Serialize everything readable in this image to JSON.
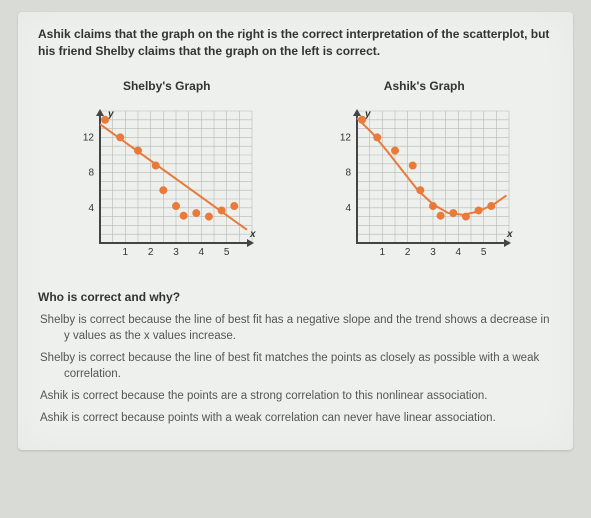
{
  "stem": "Ashik claims that the graph on the right is the correct interpretation of the scatterplot, but his friend Shelby claims that the graph on the left is correct.",
  "graph_left": {
    "title": "Shelby's Graph",
    "type": "scatter-with-line",
    "background_color": "#eef0ed",
    "grid_color": "#b9b9b0",
    "axis_color": "#444444",
    "axis_width": 2,
    "xlim": [
      0,
      6
    ],
    "ylim": [
      0,
      15
    ],
    "xticks": [
      1,
      2,
      3,
      4,
      5
    ],
    "xtick_labels": [
      "1",
      "2",
      "3",
      "4",
      "5"
    ],
    "yticks": [
      4,
      8,
      12
    ],
    "ytick_labels": [
      "4",
      "8",
      "12"
    ],
    "y_axis_label": "y",
    "x_axis_label": "x",
    "label_fontsize": 10,
    "label_color": "#333333",
    "points": [
      [
        0.2,
        14
      ],
      [
        0.8,
        12
      ],
      [
        1.5,
        10.5
      ],
      [
        2.2,
        8.8
      ],
      [
        2.5,
        6
      ],
      [
        3.0,
        4.2
      ],
      [
        3.3,
        3.1
      ],
      [
        3.8,
        3.4
      ],
      [
        4.3,
        3.0
      ],
      [
        4.8,
        3.7
      ],
      [
        5.3,
        4.2
      ]
    ],
    "point_color": "#e97a3a",
    "point_radius": 4,
    "line": {
      "x1": 0.0,
      "y1": 13.5,
      "x2": 5.8,
      "y2": 1.5
    },
    "line_color": "#e97a3a",
    "line_width": 2
  },
  "graph_right": {
    "title": "Ashik's Graph",
    "type": "scatter-with-curve",
    "background_color": "#eef0ed",
    "grid_color": "#b9b9b0",
    "axis_color": "#444444",
    "axis_width": 2,
    "xlim": [
      0,
      6
    ],
    "ylim": [
      0,
      15
    ],
    "xticks": [
      1,
      2,
      3,
      4,
      5
    ],
    "xtick_labels": [
      "1",
      "2",
      "3",
      "4",
      "5"
    ],
    "yticks": [
      4,
      8,
      12
    ],
    "ytick_labels": [
      "4",
      "8",
      "12"
    ],
    "y_axis_label": "y",
    "x_axis_label": "x",
    "label_fontsize": 10,
    "label_color": "#333333",
    "points": [
      [
        0.2,
        14
      ],
      [
        0.8,
        12
      ],
      [
        1.5,
        10.5
      ],
      [
        2.2,
        8.8
      ],
      [
        2.5,
        6
      ],
      [
        3.0,
        4.2
      ],
      [
        3.3,
        3.1
      ],
      [
        3.8,
        3.4
      ],
      [
        4.3,
        3.0
      ],
      [
        4.8,
        3.7
      ],
      [
        5.3,
        4.2
      ]
    ],
    "point_color": "#e97a3a",
    "point_radius": 4,
    "curve_points": [
      [
        0.0,
        14.2
      ],
      [
        0.6,
        12.5
      ],
      [
        1.2,
        10.4
      ],
      [
        1.8,
        8.2
      ],
      [
        2.4,
        6.0
      ],
      [
        3.0,
        4.4
      ],
      [
        3.6,
        3.4
      ],
      [
        4.2,
        3.2
      ],
      [
        4.8,
        3.6
      ],
      [
        5.4,
        4.4
      ],
      [
        5.9,
        5.4
      ]
    ],
    "curve_color": "#e97a3a",
    "curve_width": 2
  },
  "prompt": "Who is correct and why?",
  "choices": [
    "Shelby is correct because the line of best fit has a negative slope and the trend shows a decrease in y values as the x values increase.",
    "Shelby is correct because the line of best fit matches the points as closely as possible with a weak correlation.",
    "Ashik is correct because the points are a strong correlation to this nonlinear association.",
    "Ashik is correct because points with a weak correlation can never have linear association."
  ]
}
